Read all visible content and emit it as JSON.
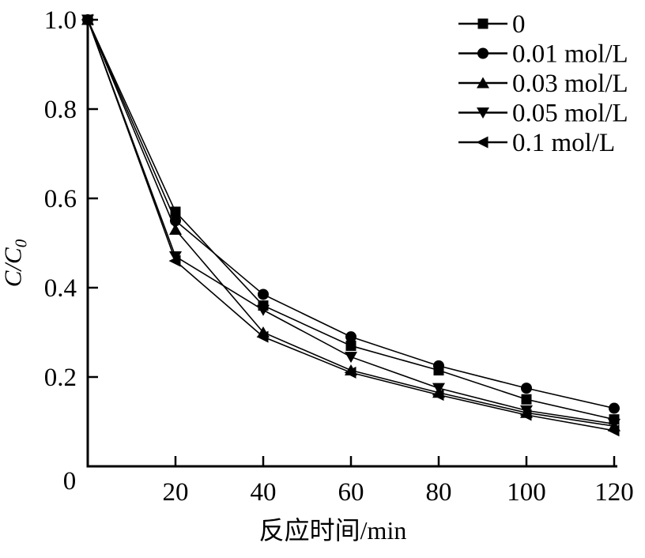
{
  "figure": {
    "background": "#ffffff",
    "ink_color": "#000000"
  },
  "chart_data": {
    "type": "line",
    "title": "",
    "xlabel": "反应时间/min",
    "ylabel_main": "C/C",
    "ylabel_sub": "0",
    "x": [
      0,
      20,
      40,
      60,
      80,
      100,
      120
    ],
    "series": [
      {
        "name": "0",
        "marker": "square",
        "values": [
          1.0,
          0.57,
          0.36,
          0.27,
          0.215,
          0.15,
          0.105
        ]
      },
      {
        "name": "0.01 mol/L",
        "marker": "circle",
        "values": [
          1.0,
          0.55,
          0.385,
          0.29,
          0.225,
          0.175,
          0.13
        ]
      },
      {
        "name": "0.03 mol/L",
        "marker": "triangle-up",
        "values": [
          1.0,
          0.53,
          0.3,
          0.215,
          0.165,
          0.12,
          0.09
        ]
      },
      {
        "name": "0.05 mol/L",
        "marker": "triangle-down",
        "values": [
          1.0,
          0.47,
          0.35,
          0.245,
          0.175,
          0.125,
          0.095
        ]
      },
      {
        "name": "0.1 mol/L",
        "marker": "triangle-left",
        "values": [
          1.0,
          0.46,
          0.29,
          0.21,
          0.16,
          0.115,
          0.08
        ]
      }
    ],
    "xlim": [
      0,
      120
    ],
    "ylim": [
      0,
      1.0
    ],
    "xticks": {
      "values": [
        20,
        40,
        60,
        80,
        100,
        120
      ],
      "labels": [
        "20",
        "40",
        "60",
        "80",
        "100",
        "120"
      ]
    },
    "yticks": {
      "values": [
        0.2,
        0.4,
        0.6,
        0.8,
        1.0
      ],
      "labels": [
        "0.2",
        "0.4",
        "0.6",
        "0.8",
        "1.0"
      ]
    },
    "origin_label": "0",
    "grid": false,
    "legend": {
      "position": "top-right",
      "entries": [
        "0",
        "0.01 mol/L",
        "0.03 mol/L",
        "0.05 mol/L",
        "0.1 mol/L"
      ]
    },
    "line_color": "#000000",
    "marker_color": "#000000"
  }
}
